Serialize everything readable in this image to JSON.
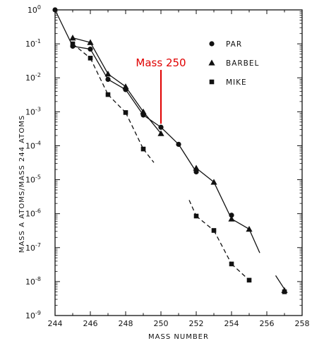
{
  "chart_data": {
    "type": "line",
    "title": "",
    "xlabel": "MASS NUMBER",
    "ylabel": "MASS A ATOMS/MASS 244 ATOMS",
    "x_ticks": [
      "244",
      "246",
      "248",
      "250",
      "252",
      "254",
      "256",
      "258"
    ],
    "xlim": [
      244,
      258
    ],
    "y_scale": "log",
    "ylim": [
      1e-09,
      1
    ],
    "y_ticks": [
      {
        "value": 1,
        "base": "10",
        "exp": "0"
      },
      {
        "value": 0.1,
        "base": "10",
        "exp": "-1"
      },
      {
        "value": 0.01,
        "base": "10",
        "exp": "-2"
      },
      {
        "value": 0.001,
        "base": "10",
        "exp": "-3"
      },
      {
        "value": 0.0001,
        "base": "10",
        "exp": "-4"
      },
      {
        "value": 1e-05,
        "base": "10",
        "exp": "-5"
      },
      {
        "value": 1e-06,
        "base": "10",
        "exp": "-6"
      },
      {
        "value": 1e-07,
        "base": "10",
        "exp": "-7"
      },
      {
        "value": 1e-08,
        "base": "10",
        "exp": "-8"
      },
      {
        "value": 1e-09,
        "base": "10",
        "exp": "-9"
      }
    ],
    "grid": false,
    "legend_position": "top-right",
    "series": [
      {
        "name": "PAR",
        "marker": "circle",
        "line": "solid",
        "points": [
          [
            244,
            1.0
          ],
          [
            245,
            0.085
          ],
          [
            246,
            0.07
          ],
          [
            247,
            0.009
          ],
          [
            248,
            0.0045
          ],
          [
            249,
            0.0008
          ],
          [
            250,
            0.00035
          ],
          [
            251,
            0.00011
          ],
          [
            252,
            1.7e-05
          ],
          [
            254,
            9e-07
          ]
        ]
      },
      {
        "name": "BARBEL",
        "marker": "triangle",
        "line": "solid",
        "points": [
          [
            245,
            0.15
          ],
          [
            246,
            0.11
          ],
          [
            247,
            0.013
          ],
          [
            248,
            0.0055
          ],
          [
            249,
            0.001
          ],
          [
            250,
            0.00023
          ],
          [
            252,
            2.2e-05
          ],
          [
            253,
            8.5e-06
          ],
          [
            254,
            7e-07
          ],
          [
            255,
            3.5e-07
          ],
          [
            257,
            5.5e-09
          ]
        ]
      },
      {
        "name": "MIKE",
        "marker": "square",
        "line": "dashed",
        "points": [
          [
            245,
            0.1
          ],
          [
            246,
            0.038
          ],
          [
            247,
            0.0032
          ],
          [
            248,
            0.00095
          ],
          [
            249,
            8e-05
          ],
          [
            252,
            8.5e-07
          ],
          [
            253,
            3.2e-07
          ],
          [
            254,
            3.3e-08
          ],
          [
            255,
            1.1e-08
          ],
          [
            257,
            5e-09
          ]
        ]
      }
    ],
    "annotation": {
      "text": "Mass 250",
      "x": 250,
      "y": 0.00035,
      "color": "#e00000"
    }
  }
}
